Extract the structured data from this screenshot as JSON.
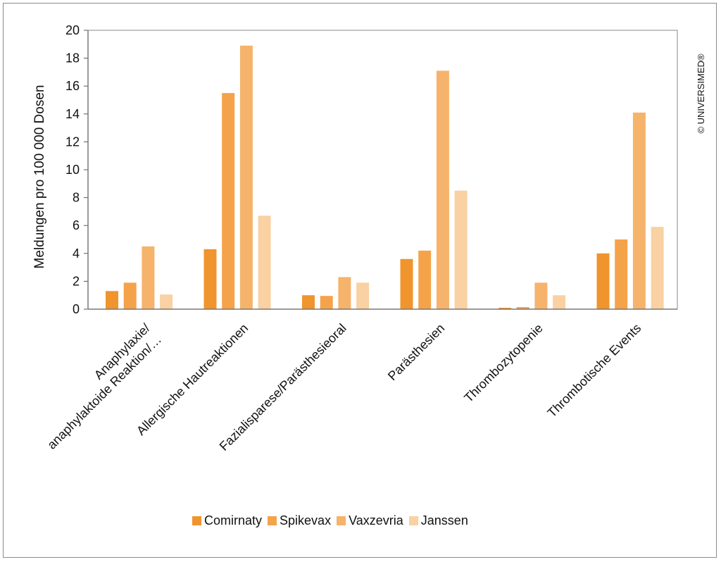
{
  "chart_data": {
    "type": "bar",
    "ylabel": "Meldungen pro 100 000 Dosen",
    "ylim": [
      0,
      20
    ],
    "yticks": [
      0,
      2,
      4,
      6,
      8,
      10,
      12,
      14,
      16,
      18,
      20
    ],
    "categories": [
      [
        "Anaphylaxie/",
        "anaphylaktoide Reaktion/…"
      ],
      [
        "Allergische Hautreaktionen"
      ],
      [
        "Fazialisparese/Parästhesieoral"
      ],
      [
        "Parästhesien"
      ],
      [
        "Thrombozytopenie"
      ],
      [
        "Thrombotische Events"
      ]
    ],
    "series": [
      {
        "name": "Comirnaty",
        "color": "#f0942e",
        "values": [
          1.3,
          4.3,
          1.0,
          3.6,
          0.1,
          4.0
        ]
      },
      {
        "name": "Spikevax",
        "color": "#f4a34a",
        "values": [
          1.9,
          15.5,
          0.95,
          4.2,
          0.15,
          5.0
        ]
      },
      {
        "name": "Vaxzevria",
        "color": "#f6b36c",
        "values": [
          4.5,
          18.9,
          2.3,
          17.1,
          1.9,
          14.1
        ]
      },
      {
        "name": "Janssen",
        "color": "#f9d1a2",
        "values": [
          1.05,
          6.7,
          1.9,
          8.5,
          1.0,
          5.9
        ]
      }
    ],
    "grid": false,
    "legend_position": "bottom"
  },
  "copyright": "© UNIVERSIMED®"
}
